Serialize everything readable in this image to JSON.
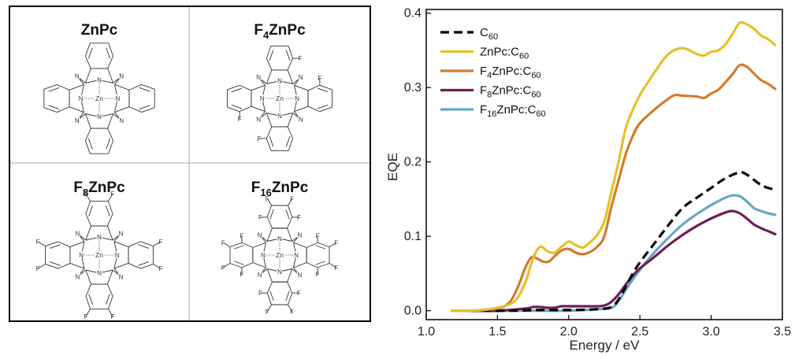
{
  "molecule_panel": {
    "cells": [
      {
        "title": "ZnPc",
        "fluorines": 0
      },
      {
        "title_prefix": "F",
        "title_sub": "4",
        "title_suffix": "ZnPc",
        "fluorines": 4
      },
      {
        "title_prefix": "F",
        "title_sub": "8",
        "title_suffix": "ZnPc",
        "fluorines": 8
      },
      {
        "title_prefix": "F",
        "title_sub": "16",
        "title_suffix": "ZnPc",
        "fluorines": 16
      }
    ],
    "atom_labels": {
      "nitrogen": "N",
      "zinc": "Zn",
      "fluorine": "F"
    }
  },
  "chart_data": {
    "type": "line",
    "xlabel": "Energy / eV",
    "ylabel": "EQE",
    "xlim": [
      1.0,
      3.5
    ],
    "ylim": [
      -0.012,
      0.405
    ],
    "xticks": [
      1.0,
      1.5,
      2.0,
      2.5,
      3.0,
      3.5
    ],
    "xtick_labels": [
      "1.0",
      "1.5",
      "2.0",
      "2.5",
      "3.0",
      "3.5"
    ],
    "yticks": [
      0.0,
      0.1,
      0.2,
      0.3,
      0.4
    ],
    "ytick_labels": [
      "0.0",
      "0.1",
      "0.2",
      "0.3",
      "0.4"
    ],
    "grid": false,
    "legend_position": "top-left",
    "series": [
      {
        "name": "C60",
        "label_main": "C",
        "label_sub": "60",
        "label_tail": "",
        "color": "#000000",
        "dashed": true,
        "x": [
          1.3,
          1.6,
          1.8,
          2.0,
          2.2,
          2.3,
          2.35,
          2.4,
          2.45,
          2.5,
          2.6,
          2.7,
          2.8,
          2.9,
          3.0,
          3.1,
          3.2,
          3.25,
          3.3,
          3.35,
          3.4,
          3.45
        ],
        "y": [
          0.0,
          0.0,
          0.001,
          0.001,
          0.002,
          0.005,
          0.015,
          0.032,
          0.05,
          0.065,
          0.09,
          0.115,
          0.138,
          0.152,
          0.165,
          0.178,
          0.186,
          0.183,
          0.176,
          0.169,
          0.165,
          0.163
        ]
      },
      {
        "name": "ZnPc:C60",
        "label_main": "ZnPc:C",
        "label_sub": "60",
        "label_tail": "",
        "color": "#E6C02A",
        "dashed": false,
        "x": [
          1.18,
          1.3,
          1.4,
          1.5,
          1.6,
          1.65,
          1.7,
          1.74,
          1.78,
          1.81,
          1.85,
          1.9,
          1.95,
          2.0,
          2.05,
          2.1,
          2.15,
          2.2,
          2.25,
          2.3,
          2.35,
          2.4,
          2.45,
          2.5,
          2.55,
          2.6,
          2.7,
          2.8,
          2.9,
          2.95,
          3.0,
          3.05,
          3.1,
          3.15,
          3.2,
          3.25,
          3.3,
          3.35,
          3.4,
          3.45
        ],
        "y": [
          0.0,
          0.0,
          0.001,
          0.004,
          0.01,
          0.02,
          0.04,
          0.065,
          0.082,
          0.086,
          0.08,
          0.078,
          0.086,
          0.093,
          0.088,
          0.085,
          0.092,
          0.102,
          0.12,
          0.16,
          0.2,
          0.245,
          0.27,
          0.29,
          0.305,
          0.32,
          0.345,
          0.353,
          0.345,
          0.343,
          0.348,
          0.35,
          0.358,
          0.372,
          0.387,
          0.385,
          0.379,
          0.37,
          0.365,
          0.357
        ]
      },
      {
        "name": "F4ZnPc:C60",
        "label_main": "F",
        "label_sub": "4",
        "label_tail": "ZnPc:C",
        "label_sub2": "60",
        "color": "#D37B2C",
        "dashed": false,
        "x": [
          1.18,
          1.3,
          1.4,
          1.5,
          1.55,
          1.6,
          1.65,
          1.7,
          1.74,
          1.78,
          1.82,
          1.86,
          1.9,
          1.95,
          2.0,
          2.05,
          2.1,
          2.15,
          2.2,
          2.25,
          2.3,
          2.35,
          2.4,
          2.45,
          2.5,
          2.6,
          2.7,
          2.75,
          2.8,
          2.9,
          2.95,
          3.0,
          3.05,
          3.1,
          3.15,
          3.2,
          3.25,
          3.3,
          3.35,
          3.4,
          3.45
        ],
        "y": [
          0.0,
          0.0,
          0.001,
          0.003,
          0.006,
          0.015,
          0.035,
          0.06,
          0.072,
          0.07,
          0.066,
          0.066,
          0.073,
          0.081,
          0.083,
          0.078,
          0.076,
          0.079,
          0.086,
          0.1,
          0.14,
          0.175,
          0.21,
          0.235,
          0.252,
          0.27,
          0.285,
          0.29,
          0.289,
          0.288,
          0.286,
          0.292,
          0.297,
          0.307,
          0.318,
          0.33,
          0.328,
          0.319,
          0.31,
          0.305,
          0.298
        ]
      },
      {
        "name": "F8ZnPc:C60",
        "label_main": "F",
        "label_sub": "8",
        "label_tail": "ZnPc:C",
        "label_sub2": "60",
        "color": "#6D1F57",
        "dashed": false,
        "x": [
          1.3,
          1.5,
          1.7,
          1.75,
          1.8,
          1.85,
          1.9,
          1.95,
          2.0,
          2.05,
          2.1,
          2.2,
          2.25,
          2.3,
          2.35,
          2.4,
          2.45,
          2.5,
          2.6,
          2.7,
          2.8,
          2.9,
          3.0,
          3.1,
          3.15,
          3.2,
          3.25,
          3.3,
          3.35,
          3.4,
          3.45
        ],
        "y": [
          0.0,
          0.0,
          0.003,
          0.005,
          0.005,
          0.004,
          0.004,
          0.006,
          0.006,
          0.006,
          0.006,
          0.006,
          0.007,
          0.012,
          0.022,
          0.035,
          0.047,
          0.057,
          0.072,
          0.088,
          0.102,
          0.114,
          0.124,
          0.132,
          0.134,
          0.131,
          0.124,
          0.116,
          0.111,
          0.107,
          0.103
        ]
      },
      {
        "name": "F16ZnPc:C60",
        "label_main": "F",
        "label_sub": "16",
        "label_tail": "ZnPc:C",
        "label_sub2": "60",
        "color": "#6AA6C8",
        "dashed": false,
        "x": [
          1.3,
          1.6,
          1.8,
          2.0,
          2.2,
          2.3,
          2.35,
          2.4,
          2.45,
          2.5,
          2.6,
          2.7,
          2.8,
          2.9,
          3.0,
          3.1,
          3.15,
          3.2,
          3.25,
          3.3,
          3.35,
          3.4,
          3.45
        ],
        "y": [
          0.0,
          0.0,
          0.0,
          0.0,
          0.002,
          0.004,
          0.013,
          0.028,
          0.042,
          0.055,
          0.078,
          0.098,
          0.116,
          0.13,
          0.142,
          0.152,
          0.155,
          0.154,
          0.147,
          0.138,
          0.134,
          0.131,
          0.129
        ]
      }
    ]
  }
}
